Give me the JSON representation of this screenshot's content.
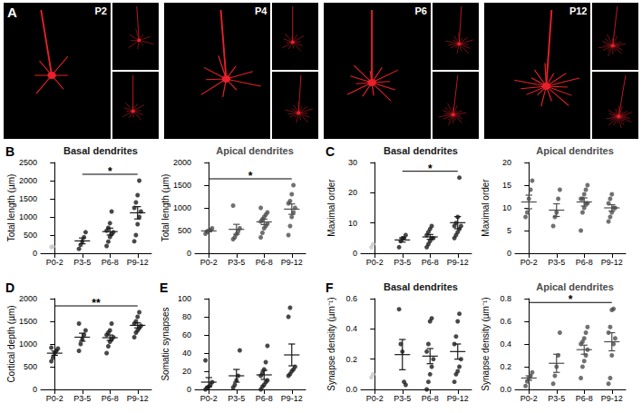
{
  "images_panel": {
    "panel": "A",
    "labels": [
      "P2",
      "P4",
      "P6",
      "P12"
    ]
  },
  "chart_data": [
    {
      "type": "scatter",
      "panel": "B",
      "title": "Basal dendrites",
      "y_label": "Total length (µm)",
      "categories": [
        "P0-2",
        "P3-5",
        "P6-8",
        "P9-12"
      ],
      "values": [
        [
          170,
          185
        ],
        [
          120,
          230,
          330,
          440,
          580
        ],
        [
          200,
          320,
          450,
          520,
          580,
          620,
          700,
          830,
          1150
        ],
        [
          330,
          500,
          800,
          1000,
          1150,
          1250,
          1400,
          1600,
          2000
        ]
      ],
      "mean": [
        null,
        340,
        597,
        1114
      ],
      "sem": [
        null,
        80,
        95,
        170
      ],
      "colors": [
        "#c8c8c8",
        "#1a1a1a",
        "#1a1a1a",
        "#1a1a1a"
      ],
      "color": "#1a1a1a",
      "ylim": [
        0,
        2500
      ],
      "yticks": [
        0,
        500,
        1000,
        1500,
        2000,
        2500
      ],
      "significance": [
        {
          "from": "P3-5",
          "to": "P9-12",
          "label": "*"
        }
      ]
    },
    {
      "type": "scatter",
      "panel": "",
      "title": "Apical dendrites",
      "y_label": "Total length (µm)",
      "categories": [
        "P0-2",
        "P3-5",
        "P6-8",
        "P9-12"
      ],
      "values": [
        [
          430,
          470,
          500,
          510,
          550
        ],
        [
          310,
          350,
          420,
          480,
          550,
          1050
        ],
        [
          350,
          450,
          550,
          600,
          650,
          700,
          750,
          800,
          850,
          900,
          1000
        ],
        [
          400,
          600,
          800,
          900,
          1000,
          1100,
          1150,
          1300,
          1500
        ]
      ],
      "mean": [
        492,
        527,
        691,
        972
      ],
      "sem": [
        20,
        110,
        60,
        115
      ],
      "colors": [
        "#4d4d4d",
        "#4d4d4d",
        "#4d4d4d",
        "#4d4d4d"
      ],
      "color": "#4d4d4d",
      "ylim": [
        0,
        2000
      ],
      "yticks": [
        0,
        500,
        1000,
        1500,
        2000
      ],
      "significance": [
        {
          "from": "P0-2",
          "to": "P9-12",
          "label": "*"
        }
      ]
    },
    {
      "type": "scatter",
      "panel": "C",
      "title": "Basal dendrites",
      "y_label": "Maximal order",
      "categories": [
        "P0-2",
        "P3-5",
        "P6-8",
        "P9-12"
      ],
      "values": [
        [
          2,
          3
        ],
        [
          2,
          4,
          5,
          5,
          6
        ],
        [
          2,
          3,
          4,
          5,
          5,
          6,
          7,
          8,
          9
        ],
        [
          5,
          6,
          7,
          8,
          9,
          9,
          10,
          12,
          25
        ]
      ],
      "mean": [
        null,
        4.4,
        5.4,
        10.1
      ],
      "sem": [
        null,
        0.7,
        0.8,
        2.0
      ],
      "colors": [
        "#c8c8c8",
        "#1a1a1a",
        "#1a1a1a",
        "#1a1a1a"
      ],
      "color": "#1a1a1a",
      "ylim": [
        0,
        30
      ],
      "yticks": [
        0,
        10,
        20,
        30
      ],
      "significance": [
        {
          "from": "P3-5",
          "to": "P9-12",
          "label": "*"
        }
      ]
    },
    {
      "type": "scatter",
      "panel": "",
      "title": "Apical dendrites",
      "y_label": "Maximal order",
      "categories": [
        "P0-2",
        "P3-5",
        "P6-8",
        "P9-12"
      ],
      "values": [
        [
          8,
          9,
          12,
          14,
          16
        ],
        [
          6,
          8,
          9,
          12,
          14
        ],
        [
          5,
          9,
          10,
          11,
          11,
          12,
          12,
          13,
          14,
          15
        ],
        [
          7,
          8,
          9,
          10,
          10,
          11,
          12,
          13
        ]
      ],
      "mean": [
        11.3,
        9.5,
        11.3,
        10
      ],
      "sem": [
        1.5,
        1.4,
        0.9,
        0.7
      ],
      "colors": [
        "#4d4d4d",
        "#4d4d4d",
        "#4d4d4d",
        "#4d4d4d"
      ],
      "color": "#4d4d4d",
      "ylim": [
        0,
        20
      ],
      "yticks": [
        0,
        5,
        10,
        15,
        20
      ],
      "significance": []
    },
    {
      "type": "scatter",
      "panel": "D",
      "title": "",
      "y_label": "Cortical depth (µm)",
      "categories": [
        "P0-2",
        "P3-5",
        "P6-8",
        "P9-12"
      ],
      "values": [
        [
          620,
          700,
          800,
          850,
          900,
          920
        ],
        [
          850,
          1000,
          1100,
          1200,
          1300,
          1450
        ],
        [
          800,
          950,
          1050,
          1100,
          1150,
          1200,
          1250,
          1300,
          1450
        ],
        [
          1150,
          1250,
          1300,
          1350,
          1400,
          1450,
          1500,
          1600,
          1700
        ]
      ],
      "mean": [
        798,
        1150,
        1139,
        1411
      ],
      "sem": [
        47,
        88,
        60,
        55
      ],
      "colors": [
        "#1a1a1a",
        "#1a1a1a",
        "#1a1a1a",
        "#1a1a1a"
      ],
      "color": "#1a1a1a",
      "ylim": [
        0,
        2000
      ],
      "yticks": [
        0,
        500,
        1000,
        1500,
        2000
      ],
      "significance": [
        {
          "from": "P0-2",
          "to": "P9-12",
          "label": "**"
        }
      ]
    },
    {
      "type": "scatter",
      "panel": "E",
      "title": "",
      "y_label": "Somatic synapses",
      "categories": [
        "P0-2",
        "P3-5",
        "P6-8",
        "P9-12"
      ],
      "values": [
        [
          0,
          2,
          3,
          5,
          8,
          32
        ],
        [
          2,
          5,
          10,
          15,
          43
        ],
        [
          0,
          3,
          5,
          8,
          10,
          15,
          18,
          22,
          30,
          48
        ],
        [
          15,
          17,
          20,
          22,
          25,
          80,
          90
        ]
      ],
      "mean": [
        8,
        15,
        16,
        38
      ],
      "sem": [
        5,
        7,
        5,
        12
      ],
      "colors": [
        "#1a1a1a",
        "#1a1a1a",
        "#1a1a1a",
        "#1a1a1a"
      ],
      "color": "#1a1a1a",
      "ylim": [
        0,
        100
      ],
      "yticks": [
        0,
        20,
        40,
        60,
        80,
        100
      ],
      "significance": []
    },
    {
      "type": "scatter",
      "panel": "F",
      "title": "Basal dendrites",
      "y_label": "Synapse density (µm⁻¹)",
      "categories": [
        "P0-2",
        "P3-5",
        "P6-8",
        "P9-12"
      ],
      "values": [
        [
          0.08,
          0.1
        ],
        [
          0.53,
          0.3,
          0.25,
          0.05,
          0.03
        ],
        [
          0.0,
          0.05,
          0.1,
          0.15,
          0.2,
          0.25,
          0.3,
          0.45,
          0.47
        ],
        [
          0.05,
          0.1,
          0.12,
          0.15,
          0.2,
          0.3,
          0.35,
          0.45,
          0.5
        ]
      ],
      "mean": [
        null,
        0.23,
        0.22,
        0.25
      ],
      "sem": [
        null,
        0.1,
        0.05,
        0.05
      ],
      "colors": [
        "#c8c8c8",
        "#1a1a1a",
        "#1a1a1a",
        "#1a1a1a"
      ],
      "color": "#1a1a1a",
      "ylim": [
        0,
        0.6
      ],
      "yticks": [
        {
          "value": 0,
          "label": "0.0"
        },
        0.2,
        0.4,
        0.6
      ],
      "significance": []
    },
    {
      "type": "scatter",
      "panel": "",
      "title": "Apical dendrites",
      "y_label": "Synapse density (µm⁻¹)",
      "categories": [
        "P0-2",
        "P3-5",
        "P6-8",
        "P9-12"
      ],
      "values": [
        [
          0.03,
          0.07,
          0.1,
          0.12,
          0.15
        ],
        [
          0.05,
          0.12,
          0.2,
          0.3,
          0.5
        ],
        [
          0.1,
          0.2,
          0.25,
          0.3,
          0.35,
          0.4,
          0.42,
          0.45,
          0.5,
          0.55
        ],
        [
          0.05,
          0.1,
          0.3,
          0.4,
          0.45,
          0.5,
          0.55,
          0.7,
          0.71
        ]
      ],
      "mean": [
        0.1,
        0.23,
        0.35,
        0.42
      ],
      "sem": [
        0.02,
        0.08,
        0.04,
        0.08
      ],
      "colors": [
        "#4d4d4d",
        "#4d4d4d",
        "#4d4d4d",
        "#4d4d4d"
      ],
      "color": "#4d4d4d",
      "ylim": [
        0,
        0.8
      ],
      "yticks": [
        {
          "value": 0,
          "label": "0.0"
        },
        0.2,
        0.4,
        0.6,
        0.8
      ],
      "significance": [
        {
          "from": "P0-2",
          "to": "P9-12",
          "label": "*"
        }
      ]
    }
  ]
}
